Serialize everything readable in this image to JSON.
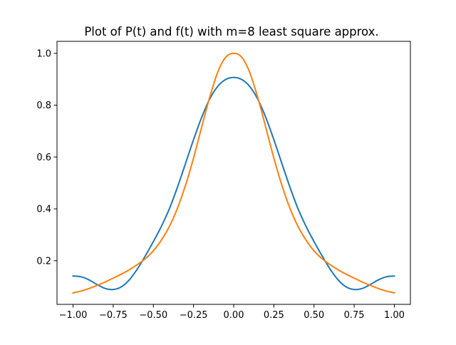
{
  "chart_data": {
    "type": "line",
    "title": "Plot of P(t) and f(t) with m=8 least square approx.",
    "xlabel": "",
    "ylabel": "",
    "xlim": [
      -1.1,
      1.1
    ],
    "ylim": [
      0.0317,
      1.0462
    ],
    "grid": false,
    "legend": "none",
    "xticks": [
      {
        "value": -1.0,
        "label": "−1.00"
      },
      {
        "value": -0.75,
        "label": "−0.75"
      },
      {
        "value": -0.5,
        "label": "−0.50"
      },
      {
        "value": -0.25,
        "label": "−0.25"
      },
      {
        "value": 0.0,
        "label": "0.00"
      },
      {
        "value": 0.25,
        "label": "0.25"
      },
      {
        "value": 0.5,
        "label": "0.50"
      },
      {
        "value": 0.75,
        "label": "0.75"
      },
      {
        "value": 1.0,
        "label": "1.00"
      }
    ],
    "yticks": [
      {
        "value": 0.2,
        "label": "0.2"
      },
      {
        "value": 0.4,
        "label": "0.4"
      },
      {
        "value": 0.6,
        "label": "0.6"
      },
      {
        "value": 0.8,
        "label": "0.8"
      },
      {
        "value": 1.0,
        "label": "1.0"
      }
    ],
    "series": [
      {
        "color": "#1f77b4",
        "x": [
          -1.0,
          -0.95,
          -0.9,
          -0.85,
          -0.8,
          -0.75,
          -0.7,
          -0.65,
          -0.6,
          -0.55,
          -0.5,
          -0.45,
          -0.4,
          -0.35,
          -0.3,
          -0.25,
          -0.2,
          -0.15,
          -0.1,
          -0.05,
          0.0,
          0.05,
          0.1,
          0.15,
          0.2,
          0.25,
          0.3,
          0.35,
          0.4,
          0.45,
          0.5,
          0.55,
          0.6,
          0.65,
          0.7,
          0.75,
          0.8,
          0.85,
          0.9,
          0.95,
          1.0
        ],
        "y": [
          0.141,
          0.138,
          0.126,
          0.108,
          0.093,
          0.089,
          0.099,
          0.126,
          0.168,
          0.219,
          0.274,
          0.333,
          0.401,
          0.484,
          0.575,
          0.667,
          0.752,
          0.823,
          0.872,
          0.899,
          0.907,
          0.899,
          0.872,
          0.823,
          0.752,
          0.667,
          0.575,
          0.484,
          0.401,
          0.333,
          0.274,
          0.219,
          0.168,
          0.126,
          0.099,
          0.089,
          0.093,
          0.108,
          0.126,
          0.138,
          0.141
        ]
      },
      {
        "color": "#ff7f0e",
        "x": [
          -1.0,
          -0.95,
          -0.9,
          -0.85,
          -0.8,
          -0.75,
          -0.7,
          -0.65,
          -0.6,
          -0.55,
          -0.5,
          -0.45,
          -0.4,
          -0.35,
          -0.3,
          -0.25,
          -0.2,
          -0.15,
          -0.1,
          -0.05,
          0.0,
          0.05,
          0.1,
          0.15,
          0.2,
          0.25,
          0.3,
          0.35,
          0.4,
          0.45,
          0.5,
          0.55,
          0.6,
          0.65,
          0.7,
          0.75,
          0.8,
          0.85,
          0.9,
          0.95,
          1.0
        ],
        "y": [
          0.076,
          0.083,
          0.093,
          0.105,
          0.118,
          0.133,
          0.148,
          0.165,
          0.185,
          0.208,
          0.238,
          0.28,
          0.333,
          0.403,
          0.491,
          0.596,
          0.714,
          0.829,
          0.926,
          0.985,
          1.0,
          0.985,
          0.926,
          0.829,
          0.714,
          0.596,
          0.491,
          0.403,
          0.333,
          0.28,
          0.238,
          0.208,
          0.185,
          0.165,
          0.148,
          0.133,
          0.118,
          0.105,
          0.093,
          0.083,
          0.076
        ]
      }
    ]
  }
}
